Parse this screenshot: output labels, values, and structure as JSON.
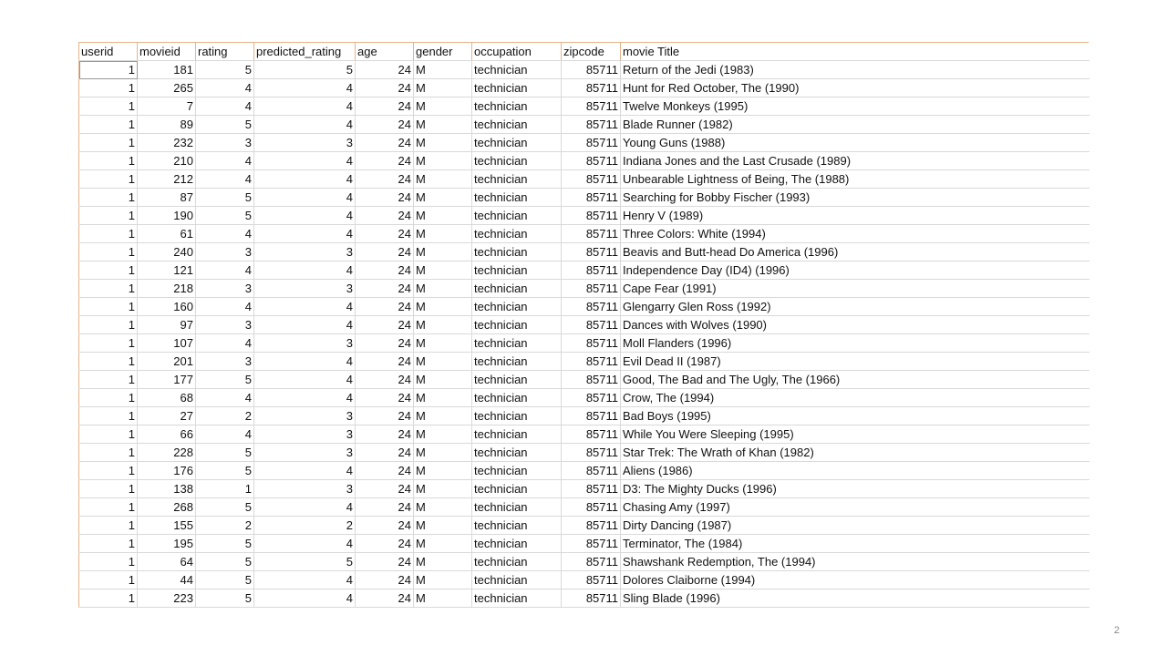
{
  "table": {
    "headers": [
      "userid",
      "movieid",
      "rating",
      "predicted_rating",
      "age",
      "gender",
      "occupation",
      "zipcode",
      "movie Title"
    ],
    "rows": [
      {
        "userid": "1",
        "movieid": "181",
        "rating": "5",
        "predicted_rating": "5",
        "age": "24",
        "gender": "M",
        "occupation": "technician",
        "zipcode": "85711",
        "title": "Return of the Jedi (1983)"
      },
      {
        "userid": "1",
        "movieid": "265",
        "rating": "4",
        "predicted_rating": "4",
        "age": "24",
        "gender": "M",
        "occupation": "technician",
        "zipcode": "85711",
        "title": "Hunt for Red October, The (1990)"
      },
      {
        "userid": "1",
        "movieid": "7",
        "rating": "4",
        "predicted_rating": "4",
        "age": "24",
        "gender": "M",
        "occupation": "technician",
        "zipcode": "85711",
        "title": "Twelve Monkeys (1995)"
      },
      {
        "userid": "1",
        "movieid": "89",
        "rating": "5",
        "predicted_rating": "4",
        "age": "24",
        "gender": "M",
        "occupation": "technician",
        "zipcode": "85711",
        "title": "Blade Runner (1982)"
      },
      {
        "userid": "1",
        "movieid": "232",
        "rating": "3",
        "predicted_rating": "3",
        "age": "24",
        "gender": "M",
        "occupation": "technician",
        "zipcode": "85711",
        "title": "Young Guns (1988)"
      },
      {
        "userid": "1",
        "movieid": "210",
        "rating": "4",
        "predicted_rating": "4",
        "age": "24",
        "gender": "M",
        "occupation": "technician",
        "zipcode": "85711",
        "title": "Indiana Jones and the Last Crusade (1989)"
      },
      {
        "userid": "1",
        "movieid": "212",
        "rating": "4",
        "predicted_rating": "4",
        "age": "24",
        "gender": "M",
        "occupation": "technician",
        "zipcode": "85711",
        "title": "Unbearable Lightness of Being, The (1988)"
      },
      {
        "userid": "1",
        "movieid": "87",
        "rating": "5",
        "predicted_rating": "4",
        "age": "24",
        "gender": "M",
        "occupation": "technician",
        "zipcode": "85711",
        "title": "Searching for Bobby Fischer (1993)"
      },
      {
        "userid": "1",
        "movieid": "190",
        "rating": "5",
        "predicted_rating": "4",
        "age": "24",
        "gender": "M",
        "occupation": "technician",
        "zipcode": "85711",
        "title": "Henry V (1989)"
      },
      {
        "userid": "1",
        "movieid": "61",
        "rating": "4",
        "predicted_rating": "4",
        "age": "24",
        "gender": "M",
        "occupation": "technician",
        "zipcode": "85711",
        "title": "Three Colors: White (1994)"
      },
      {
        "userid": "1",
        "movieid": "240",
        "rating": "3",
        "predicted_rating": "3",
        "age": "24",
        "gender": "M",
        "occupation": "technician",
        "zipcode": "85711",
        "title": "Beavis and Butt-head Do America (1996)"
      },
      {
        "userid": "1",
        "movieid": "121",
        "rating": "4",
        "predicted_rating": "4",
        "age": "24",
        "gender": "M",
        "occupation": "technician",
        "zipcode": "85711",
        "title": "Independence Day (ID4) (1996)"
      },
      {
        "userid": "1",
        "movieid": "218",
        "rating": "3",
        "predicted_rating": "3",
        "age": "24",
        "gender": "M",
        "occupation": "technician",
        "zipcode": "85711",
        "title": "Cape Fear (1991)"
      },
      {
        "userid": "1",
        "movieid": "160",
        "rating": "4",
        "predicted_rating": "4",
        "age": "24",
        "gender": "M",
        "occupation": "technician",
        "zipcode": "85711",
        "title": "Glengarry Glen Ross (1992)"
      },
      {
        "userid": "1",
        "movieid": "97",
        "rating": "3",
        "predicted_rating": "4",
        "age": "24",
        "gender": "M",
        "occupation": "technician",
        "zipcode": "85711",
        "title": "Dances with Wolves (1990)"
      },
      {
        "userid": "1",
        "movieid": "107",
        "rating": "4",
        "predicted_rating": "3",
        "age": "24",
        "gender": "M",
        "occupation": "technician",
        "zipcode": "85711",
        "title": "Moll Flanders (1996)"
      },
      {
        "userid": "1",
        "movieid": "201",
        "rating": "3",
        "predicted_rating": "4",
        "age": "24",
        "gender": "M",
        "occupation": "technician",
        "zipcode": "85711",
        "title": "Evil Dead II (1987)"
      },
      {
        "userid": "1",
        "movieid": "177",
        "rating": "5",
        "predicted_rating": "4",
        "age": "24",
        "gender": "M",
        "occupation": "technician",
        "zipcode": "85711",
        "title": "Good, The Bad and The Ugly, The (1966)"
      },
      {
        "userid": "1",
        "movieid": "68",
        "rating": "4",
        "predicted_rating": "4",
        "age": "24",
        "gender": "M",
        "occupation": "technician",
        "zipcode": "85711",
        "title": "Crow, The (1994)"
      },
      {
        "userid": "1",
        "movieid": "27",
        "rating": "2",
        "predicted_rating": "3",
        "age": "24",
        "gender": "M",
        "occupation": "technician",
        "zipcode": "85711",
        "title": "Bad Boys (1995)"
      },
      {
        "userid": "1",
        "movieid": "66",
        "rating": "4",
        "predicted_rating": "3",
        "age": "24",
        "gender": "M",
        "occupation": "technician",
        "zipcode": "85711",
        "title": "While You Were Sleeping (1995)"
      },
      {
        "userid": "1",
        "movieid": "228",
        "rating": "5",
        "predicted_rating": "3",
        "age": "24",
        "gender": "M",
        "occupation": "technician",
        "zipcode": "85711",
        "title": "Star Trek: The Wrath of Khan (1982)"
      },
      {
        "userid": "1",
        "movieid": "176",
        "rating": "5",
        "predicted_rating": "4",
        "age": "24",
        "gender": "M",
        "occupation": "technician",
        "zipcode": "85711",
        "title": "Aliens (1986)"
      },
      {
        "userid": "1",
        "movieid": "138",
        "rating": "1",
        "predicted_rating": "3",
        "age": "24",
        "gender": "M",
        "occupation": "technician",
        "zipcode": "85711",
        "title": "D3: The Mighty Ducks (1996)"
      },
      {
        "userid": "1",
        "movieid": "268",
        "rating": "5",
        "predicted_rating": "4",
        "age": "24",
        "gender": "M",
        "occupation": "technician",
        "zipcode": "85711",
        "title": "Chasing Amy (1997)"
      },
      {
        "userid": "1",
        "movieid": "155",
        "rating": "2",
        "predicted_rating": "2",
        "age": "24",
        "gender": "M",
        "occupation": "technician",
        "zipcode": "85711",
        "title": "Dirty Dancing (1987)"
      },
      {
        "userid": "1",
        "movieid": "195",
        "rating": "5",
        "predicted_rating": "4",
        "age": "24",
        "gender": "M",
        "occupation": "technician",
        "zipcode": "85711",
        "title": "Terminator, The (1984)"
      },
      {
        "userid": "1",
        "movieid": "64",
        "rating": "5",
        "predicted_rating": "5",
        "age": "24",
        "gender": "M",
        "occupation": "technician",
        "zipcode": "85711",
        "title": "Shawshank Redemption, The (1994)"
      },
      {
        "userid": "1",
        "movieid": "44",
        "rating": "5",
        "predicted_rating": "4",
        "age": "24",
        "gender": "M",
        "occupation": "technician",
        "zipcode": "85711",
        "title": "Dolores Claiborne (1994)"
      },
      {
        "userid": "1",
        "movieid": "223",
        "rating": "5",
        "predicted_rating": "4",
        "age": "24",
        "gender": "M",
        "occupation": "technician",
        "zipcode": "85711",
        "title": "Sling Blade (1996)"
      }
    ]
  },
  "page_number": "2",
  "colors": {
    "header_rule": "#e8b48a",
    "grid_line": "#d9d9d9",
    "page_number": "#8a8a8a"
  }
}
